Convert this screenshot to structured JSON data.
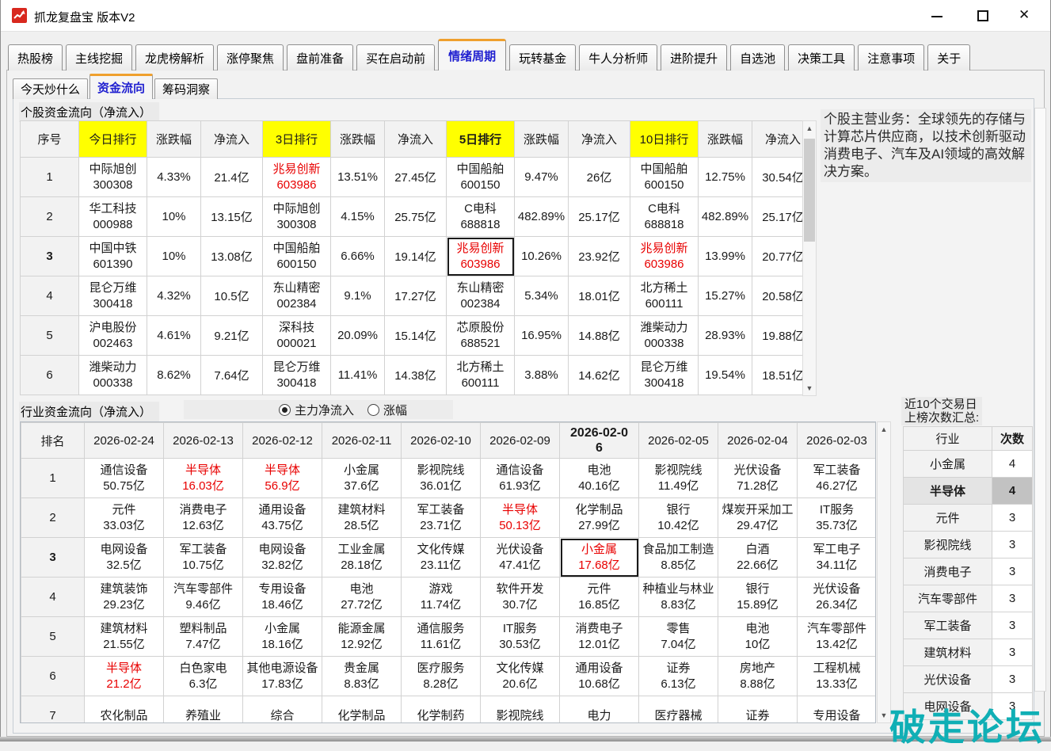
{
  "colors": {
    "accent_orange": "#EFA02E",
    "active_tab_blue": "#1F1FD0",
    "highlight_yellow": "#FFFF00",
    "alert_red": "#E80000",
    "selected_gray": "#C2C2C2",
    "watermark_teal": "#10AFB5",
    "app_icon_red": "#D8281E"
  },
  "icons": {
    "app_icon": "red-square-trend-arrow",
    "minimize_icon": "horizontal-line",
    "maximize_icon": "square-outline",
    "close_icon": "x-mark",
    "scroll_up_icon": "chevron-up",
    "scroll_down_icon": "chevron-down",
    "radio_selected_icon": "filled-radio",
    "radio_unselected_icon": "empty-radio"
  },
  "titlebar": {
    "title": "抓龙复盘宝  版本V2",
    "close_glyph": "✕"
  },
  "tabbar": {
    "active": "情绪周期",
    "tabs": [
      "热股榜",
      "主线挖掘",
      "龙虎榜解析",
      "涨停聚焦",
      "盘前准备",
      "买在启动前",
      "情绪周期",
      "玩转基金",
      "牛人分析师",
      "进阶提升",
      "自选池",
      "决策工具",
      "注意事项",
      "关于"
    ]
  },
  "subtabbar": {
    "active": "资金流向",
    "tabs": [
      "今天炒什么",
      "资金流向",
      "筹码洞察"
    ]
  },
  "stock_flow": {
    "section_title": "个股资金流向（净流入）",
    "headers": [
      {
        "label": "序号"
      },
      {
        "label": "今日排行",
        "yellow": true
      },
      {
        "label": "涨跌幅"
      },
      {
        "label": "净流入"
      },
      {
        "label": "3日排行",
        "yellow": true
      },
      {
        "label": "涨跌幅"
      },
      {
        "label": "净流入"
      },
      {
        "label": "5日排行",
        "yellow": true,
        "bold": true
      },
      {
        "label": "涨跌幅"
      },
      {
        "label": "净流入"
      },
      {
        "label": "10日排行",
        "yellow": true
      },
      {
        "label": "涨跌幅"
      },
      {
        "label": "净流入"
      }
    ],
    "rows": [
      {
        "seq": "1",
        "cells": [
          {
            "name": "中际旭创",
            "code": "300308"
          },
          {
            "t": "4.33%"
          },
          {
            "t": "21.4亿"
          },
          {
            "name": "兆易创新",
            "code": "603986",
            "red": true
          },
          {
            "t": "13.51%"
          },
          {
            "t": "27.45亿"
          },
          {
            "name": "中国船舶",
            "code": "600150"
          },
          {
            "t": "9.47%"
          },
          {
            "t": "26亿"
          },
          {
            "name": "中国船舶",
            "code": "600150"
          },
          {
            "t": "12.75%"
          },
          {
            "t": "30.54亿"
          }
        ]
      },
      {
        "seq": "2",
        "cells": [
          {
            "name": "华工科技",
            "code": "000988"
          },
          {
            "t": "10%"
          },
          {
            "t": "13.15亿"
          },
          {
            "name": "中际旭创",
            "code": "300308"
          },
          {
            "t": "4.15%"
          },
          {
            "t": "25.75亿"
          },
          {
            "name": "C电科",
            "code": "688818"
          },
          {
            "t": "482.89%"
          },
          {
            "t": "25.17亿"
          },
          {
            "name": "C电科",
            "code": "688818"
          },
          {
            "t": "482.89%"
          },
          {
            "t": "25.17亿"
          }
        ]
      },
      {
        "seq": "3",
        "seq_bold": true,
        "cells": [
          {
            "name": "中国中铁",
            "code": "601390"
          },
          {
            "t": "10%"
          },
          {
            "t": "13.08亿"
          },
          {
            "name": "中国船舶",
            "code": "600150"
          },
          {
            "t": "6.66%"
          },
          {
            "t": "19.14亿"
          },
          {
            "name": "兆易创新",
            "code": "603986",
            "red": true,
            "boxed": true
          },
          {
            "t": "10.26%"
          },
          {
            "t": "23.92亿"
          },
          {
            "name": "兆易创新",
            "code": "603986",
            "red": true
          },
          {
            "t": "13.99%"
          },
          {
            "t": "20.77亿"
          }
        ]
      },
      {
        "seq": "4",
        "cells": [
          {
            "name": "昆仑万维",
            "code": "300418"
          },
          {
            "t": "4.32%"
          },
          {
            "t": "10.5亿"
          },
          {
            "name": "东山精密",
            "code": "002384"
          },
          {
            "t": "9.1%"
          },
          {
            "t": "17.27亿"
          },
          {
            "name": "东山精密",
            "code": "002384"
          },
          {
            "t": "5.34%"
          },
          {
            "t": "18.01亿"
          },
          {
            "name": "北方稀土",
            "code": "600111"
          },
          {
            "t": "15.27%"
          },
          {
            "t": "20.58亿"
          }
        ]
      },
      {
        "seq": "5",
        "cells": [
          {
            "name": "沪电股份",
            "code": "002463"
          },
          {
            "t": "4.61%"
          },
          {
            "t": "9.21亿"
          },
          {
            "name": "深科技",
            "code": "000021"
          },
          {
            "t": "20.09%"
          },
          {
            "t": "15.14亿"
          },
          {
            "name": "芯原股份",
            "code": "688521"
          },
          {
            "t": "16.95%"
          },
          {
            "t": "14.88亿"
          },
          {
            "name": "潍柴动力",
            "code": "000338"
          },
          {
            "t": "28.93%"
          },
          {
            "t": "19.88亿"
          }
        ]
      },
      {
        "seq": "6",
        "cells": [
          {
            "name": "潍柴动力",
            "code": "000338"
          },
          {
            "t": "8.62%"
          },
          {
            "t": "7.64亿"
          },
          {
            "name": "昆仑万维",
            "code": "300418"
          },
          {
            "t": "11.41%"
          },
          {
            "t": "14.38亿"
          },
          {
            "name": "北方稀土",
            "code": "600111"
          },
          {
            "t": "3.88%"
          },
          {
            "t": "14.62亿"
          },
          {
            "name": "昆仑万维",
            "code": "300418"
          },
          {
            "t": "19.54%"
          },
          {
            "t": "18.51亿"
          }
        ]
      }
    ]
  },
  "business_panel": {
    "title": "个股主营业务：",
    "body": "全球领先的存储与计算芯片供应商，以技术创新驱动消费电子、汽车及AI领域的高效解决方案。"
  },
  "industry_flow": {
    "section_title": "行业资金流向（净流入）",
    "radios": [
      {
        "label": "主力净流入",
        "selected": true
      },
      {
        "label": "涨幅",
        "selected": false
      }
    ],
    "headers": [
      {
        "label": "排名"
      },
      {
        "label": "2026-02-24"
      },
      {
        "label": "2026-02-13"
      },
      {
        "label": "2026-02-12"
      },
      {
        "label": "2026-02-11"
      },
      {
        "label": "2026-02-10"
      },
      {
        "label": "2026-02-09"
      },
      {
        "label": "2026-02-06",
        "bold": true
      },
      {
        "label": "2026-02-05"
      },
      {
        "label": "2026-02-04"
      },
      {
        "label": "2026-02-03"
      }
    ],
    "rows": [
      {
        "seq": "1",
        "cells": [
          {
            "name": "通信设备",
            "value": "50.75亿"
          },
          {
            "name": "半导体",
            "value": "16.03亿",
            "red": true
          },
          {
            "name": "半导体",
            "value": "56.9亿",
            "red": true
          },
          {
            "name": "小金属",
            "value": "37.6亿"
          },
          {
            "name": "影视院线",
            "value": "36.01亿"
          },
          {
            "name": "通信设备",
            "value": "61.93亿"
          },
          {
            "name": "电池",
            "value": "40.16亿"
          },
          {
            "name": "影视院线",
            "value": "11.49亿"
          },
          {
            "name": "光伏设备",
            "value": "71.28亿"
          },
          {
            "name": "军工装备",
            "value": "46.27亿"
          }
        ]
      },
      {
        "seq": "2",
        "cells": [
          {
            "name": "元件",
            "value": "33.03亿"
          },
          {
            "name": "消费电子",
            "value": "12.63亿"
          },
          {
            "name": "通用设备",
            "value": "43.75亿"
          },
          {
            "name": "建筑材料",
            "value": "28.5亿"
          },
          {
            "name": "军工装备",
            "value": "23.71亿"
          },
          {
            "name": "半导体",
            "value": "50.13亿",
            "red": true
          },
          {
            "name": "化学制品",
            "value": "27.99亿"
          },
          {
            "name": "银行",
            "value": "10.42亿"
          },
          {
            "name": "煤炭开采加工",
            "value": "29.47亿"
          },
          {
            "name": "IT服务",
            "value": "35.73亿"
          }
        ]
      },
      {
        "seq": "3",
        "seq_bold": true,
        "cells": [
          {
            "name": "电网设备",
            "value": "32.5亿"
          },
          {
            "name": "军工装备",
            "value": "10.75亿"
          },
          {
            "name": "电网设备",
            "value": "32.82亿"
          },
          {
            "name": "工业金属",
            "value": "28.18亿"
          },
          {
            "name": "文化传媒",
            "value": "23.11亿"
          },
          {
            "name": "光伏设备",
            "value": "47.41亿"
          },
          {
            "name": "小金属",
            "value": "17.68亿",
            "red": true,
            "boxed": true
          },
          {
            "name": "食品加工制造",
            "value": "8.85亿"
          },
          {
            "name": "白酒",
            "value": "22.66亿"
          },
          {
            "name": "军工电子",
            "value": "34.11亿"
          }
        ]
      },
      {
        "seq": "4",
        "cells": [
          {
            "name": "建筑装饰",
            "value": "29.23亿"
          },
          {
            "name": "汽车零部件",
            "value": "9.46亿"
          },
          {
            "name": "专用设备",
            "value": "18.46亿"
          },
          {
            "name": "电池",
            "value": "27.72亿"
          },
          {
            "name": "游戏",
            "value": "11.74亿"
          },
          {
            "name": "软件开发",
            "value": "30.7亿"
          },
          {
            "name": "元件",
            "value": "16.85亿"
          },
          {
            "name": "种植业与林业",
            "value": "8.83亿"
          },
          {
            "name": "银行",
            "value": "15.89亿"
          },
          {
            "name": "光伏设备",
            "value": "26.34亿"
          }
        ]
      },
      {
        "seq": "5",
        "cells": [
          {
            "name": "建筑材料",
            "value": "21.55亿"
          },
          {
            "name": "塑料制品",
            "value": "7.47亿"
          },
          {
            "name": "小金属",
            "value": "18.16亿"
          },
          {
            "name": "能源金属",
            "value": "12.92亿"
          },
          {
            "name": "通信服务",
            "value": "11.61亿"
          },
          {
            "name": "IT服务",
            "value": "30.53亿"
          },
          {
            "name": "消费电子",
            "value": "12.01亿"
          },
          {
            "name": "零售",
            "value": "7.04亿"
          },
          {
            "name": "电池",
            "value": "10亿"
          },
          {
            "name": "汽车零部件",
            "value": "13.42亿"
          }
        ]
      },
      {
        "seq": "6",
        "cells": [
          {
            "name": "半导体",
            "value": "21.2亿",
            "red": true
          },
          {
            "name": "白色家电",
            "value": "6.3亿"
          },
          {
            "name": "其他电源设备",
            "value": "17.83亿"
          },
          {
            "name": "贵金属",
            "value": "8.83亿"
          },
          {
            "name": "医疗服务",
            "value": "8.28亿"
          },
          {
            "name": "文化传媒",
            "value": "20.6亿"
          },
          {
            "name": "通用设备",
            "value": "10.68亿"
          },
          {
            "name": "证券",
            "value": "6.13亿"
          },
          {
            "name": "房地产",
            "value": "8.88亿"
          },
          {
            "name": "工程机械",
            "value": "13.33亿"
          }
        ]
      },
      {
        "seq": "7",
        "cells": [
          {
            "name": "农化制品"
          },
          {
            "name": "养殖业"
          },
          {
            "name": "综合"
          },
          {
            "name": "化学制品"
          },
          {
            "name": "化学制药"
          },
          {
            "name": "影视院线"
          },
          {
            "name": "电力"
          },
          {
            "name": "医疗器械"
          },
          {
            "name": "证券"
          },
          {
            "name": "专用设备"
          }
        ]
      }
    ]
  },
  "summary_panel": {
    "label_line1": "近10个交易日",
    "label_line2": "上榜次数汇总:",
    "col_industry": "行业",
    "col_count": "次数",
    "rows": [
      {
        "industry": "小金属",
        "count": "4"
      },
      {
        "industry": "半导体",
        "count": "4",
        "selected": true
      },
      {
        "industry": "元件",
        "count": "3"
      },
      {
        "industry": "影视院线",
        "count": "3"
      },
      {
        "industry": "消费电子",
        "count": "3"
      },
      {
        "industry": "汽车零部件",
        "count": "3"
      },
      {
        "industry": "军工装备",
        "count": "3"
      },
      {
        "industry": "建筑材料",
        "count": "3"
      },
      {
        "industry": "光伏设备",
        "count": "3"
      },
      {
        "industry": "电网设备",
        "count": "3"
      }
    ]
  },
  "watermark": "破走论坛"
}
